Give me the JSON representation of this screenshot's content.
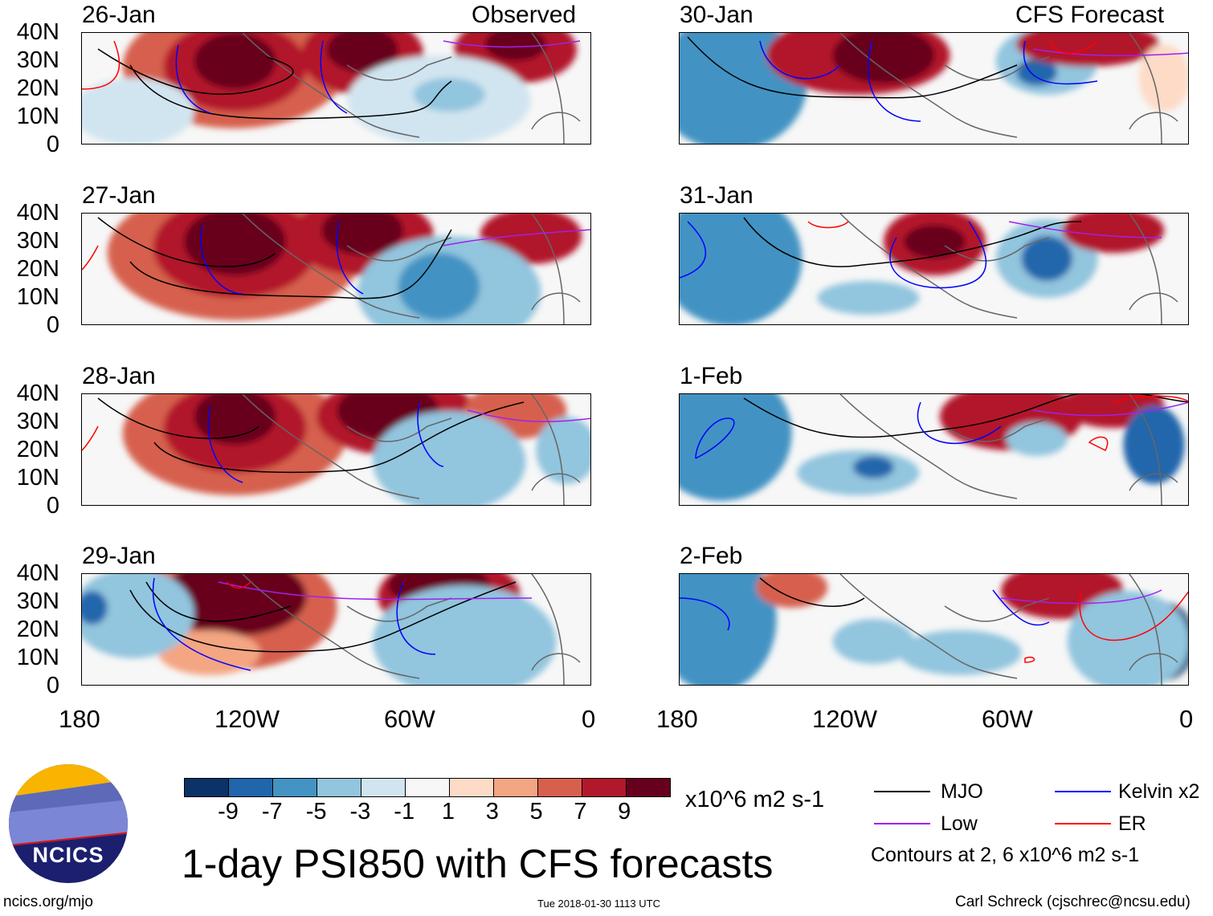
{
  "headers": {
    "observed": "Observed",
    "forecast": "CFS Forecast"
  },
  "panels": [
    {
      "date": "26-Jan",
      "column": "observed"
    },
    {
      "date": "27-Jan",
      "column": "observed"
    },
    {
      "date": "28-Jan",
      "column": "observed"
    },
    {
      "date": "29-Jan",
      "column": "observed"
    },
    {
      "date": "30-Jan",
      "column": "forecast"
    },
    {
      "date": "31-Jan",
      "column": "forecast"
    },
    {
      "date": "1-Feb",
      "column": "forecast"
    },
    {
      "date": "2-Feb",
      "column": "forecast"
    }
  ],
  "y_ticks": [
    "40N",
    "30N",
    "20N",
    "10N",
    "0"
  ],
  "x_ticks": [
    "180",
    "120W",
    "60W",
    "0"
  ],
  "colorbar": {
    "colors": [
      "#0b3367",
      "#2166ac",
      "#4393c3",
      "#92c5de",
      "#d1e5f0",
      "#f7f7f7",
      "#fddbc7",
      "#f4a582",
      "#d6604d",
      "#b2182b",
      "#67001f"
    ],
    "labels": [
      "-9",
      "-7",
      "-5",
      "-3",
      "-1",
      "1",
      "3",
      "5",
      "7",
      "9"
    ],
    "units": "x10^6 m2 s-1"
  },
  "legend": {
    "items": [
      {
        "label": "MJO",
        "color": "#000000"
      },
      {
        "label": "Kelvin x2",
        "color": "#0000ff"
      },
      {
        "label": "Low",
        "color": "#a020f0"
      },
      {
        "label": "ER",
        "color": "#ff0000"
      }
    ],
    "note": "Contours at 2, 6 x10^6 m2 s-1"
  },
  "title": "1-day PSI850 with CFS forecasts",
  "timestamp": "Tue 2018-01-30 1113 UTC",
  "logo_text": "NCICS",
  "url": "ncics.org/mjo",
  "credit": "Carl Schreck (cjschrec@ncsu.edu)"
}
